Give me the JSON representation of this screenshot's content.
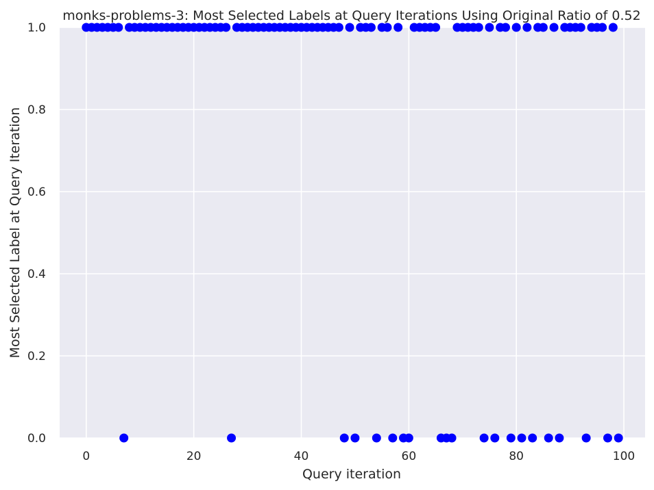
{
  "chart_data": {
    "type": "scatter",
    "title": "monks-problems-3: Most Selected Labels at Query Iterations Using Original Ratio of 0.52",
    "xlabel": "Query iteration",
    "ylabel": "Most Selected Label at Query Iteration",
    "xlim": [
      -4.95,
      103.95
    ],
    "ylim": [
      0.0,
      1.0
    ],
    "x_ticks": [
      0,
      20,
      40,
      60,
      80,
      100
    ],
    "y_ticks": [
      0.0,
      0.2,
      0.4,
      0.6,
      0.8,
      1.0
    ],
    "x_tick_labels": [
      "0",
      "20",
      "40",
      "60",
      "80",
      "100"
    ],
    "y_tick_labels": [
      "0.0",
      "0.2",
      "0.4",
      "0.6",
      "0.8",
      "1.0"
    ],
    "grid": true,
    "background": "#eaeaf2",
    "grid_color": "#ffffff",
    "marker_color": "#0000ff",
    "x": [
      0,
      1,
      2,
      3,
      4,
      5,
      6,
      7,
      8,
      9,
      10,
      11,
      12,
      13,
      14,
      15,
      16,
      17,
      18,
      19,
      20,
      21,
      22,
      23,
      24,
      25,
      26,
      27,
      28,
      29,
      30,
      31,
      32,
      33,
      34,
      35,
      36,
      37,
      38,
      39,
      40,
      41,
      42,
      43,
      44,
      45,
      46,
      47,
      48,
      49,
      50,
      51,
      52,
      53,
      54,
      55,
      56,
      57,
      58,
      59,
      60,
      61,
      62,
      63,
      64,
      65,
      66,
      67,
      68,
      69,
      70,
      71,
      72,
      73,
      74,
      75,
      76,
      77,
      78,
      79,
      80,
      81,
      82,
      83,
      84,
      85,
      86,
      87,
      88,
      89,
      90,
      91,
      92,
      93,
      94,
      95,
      96,
      97,
      98,
      99
    ],
    "y": [
      1,
      1,
      1,
      1,
      1,
      1,
      1,
      0,
      1,
      1,
      1,
      1,
      1,
      1,
      1,
      1,
      1,
      1,
      1,
      1,
      1,
      1,
      1,
      1,
      1,
      1,
      1,
      0,
      1,
      1,
      1,
      1,
      1,
      1,
      1,
      1,
      1,
      1,
      1,
      1,
      1,
      1,
      1,
      1,
      1,
      1,
      1,
      1,
      0,
      1,
      0,
      1,
      1,
      1,
      0,
      1,
      1,
      0,
      1,
      0,
      0,
      1,
      1,
      1,
      1,
      1,
      0,
      0,
      0,
      1,
      1,
      1,
      1,
      1,
      0,
      1,
      0,
      1,
      1,
      0,
      1,
      0,
      1,
      0,
      1,
      1,
      0,
      1,
      0,
      1,
      1,
      1,
      1,
      0,
      1,
      1,
      1,
      0,
      1,
      0
    ]
  }
}
